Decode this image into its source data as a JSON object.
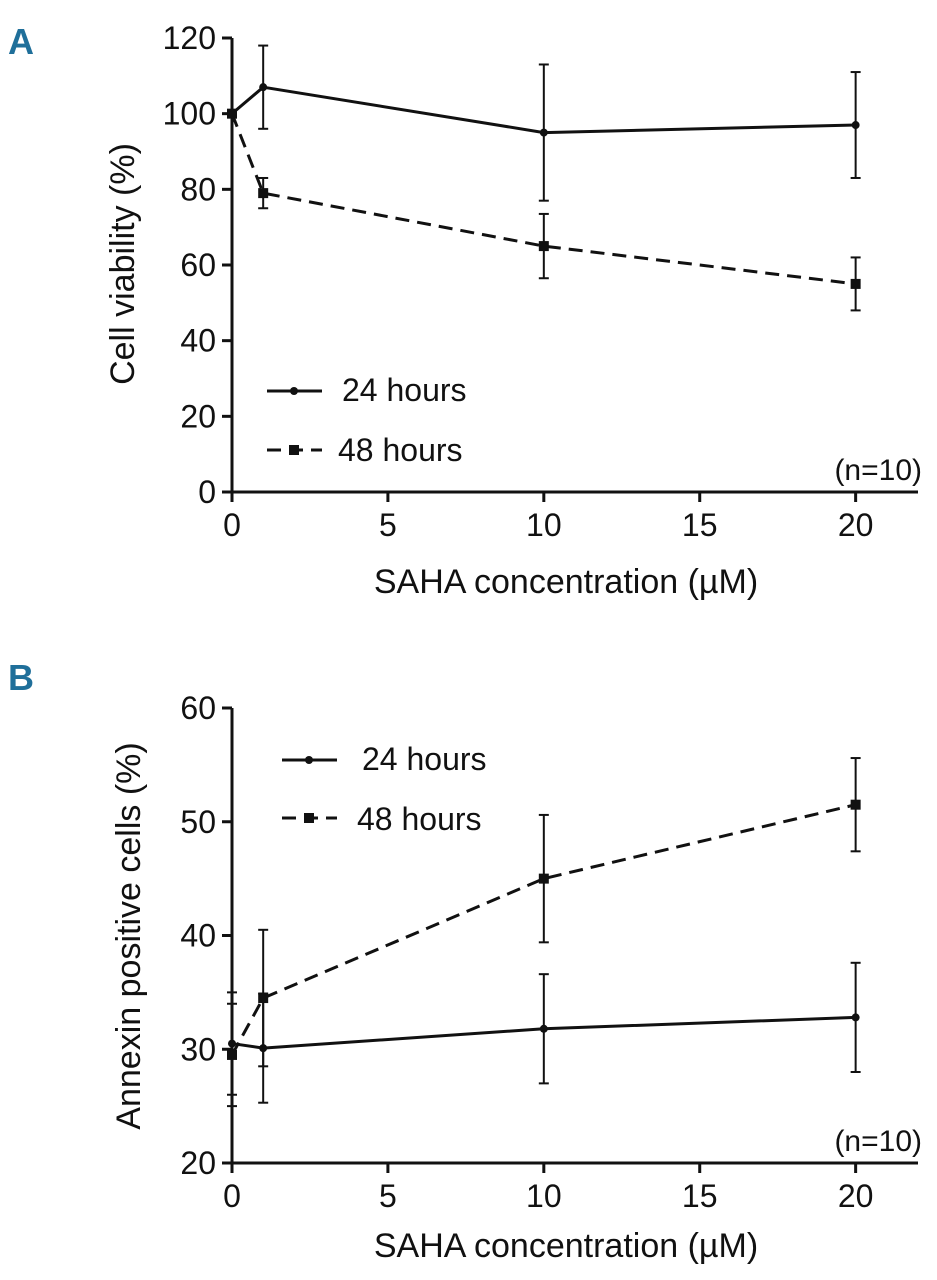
{
  "panels": [
    {
      "label": "A",
      "note": "(n=10)",
      "chart_data": {
        "type": "line",
        "title": "",
        "xlabel": "SAHA concentration (µM)",
        "ylabel": "Cell viability (%)",
        "xlim": [
          0,
          22
        ],
        "ylim": [
          0,
          120
        ],
        "xticks": [
          0,
          5,
          10,
          15,
          20
        ],
        "yticks": [
          0,
          20,
          40,
          60,
          80,
          100,
          120
        ],
        "grid": false,
        "legend_position": "lower-left",
        "series": [
          {
            "name": "24 hours",
            "line_style": "solid",
            "marker": "circle",
            "x": [
              0,
              1,
              10,
              20
            ],
            "y": [
              100,
              107,
              95,
              97
            ],
            "err": [
              0,
              11,
              18,
              14
            ]
          },
          {
            "name": "48 hours",
            "line_style": "dashed",
            "marker": "square",
            "x": [
              0,
              1,
              10,
              20
            ],
            "y": [
              100,
              79,
              65,
              55
            ],
            "err": [
              0,
              4,
              8.5,
              7
            ]
          }
        ]
      }
    },
    {
      "label": "B",
      "note": "(n=10)",
      "chart_data": {
        "type": "line",
        "title": "",
        "xlabel": "SAHA concentration (µM)",
        "ylabel": "Annexin positive cells (%)",
        "xlim": [
          0,
          22
        ],
        "ylim": [
          20,
          60
        ],
        "xticks": [
          0,
          5,
          10,
          15,
          20
        ],
        "yticks": [
          20,
          30,
          40,
          50,
          60
        ],
        "grid": false,
        "legend_position": "top-left",
        "series": [
          {
            "name": "24 hours",
            "line_style": "solid",
            "marker": "circle",
            "x": [
              0,
              1,
              10,
              20
            ],
            "y": [
              30.5,
              30.1,
              31.8,
              32.8
            ],
            "err": [
              4.5,
              4.8,
              4.8,
              4.8
            ]
          },
          {
            "name": "48 hours",
            "line_style": "dashed",
            "marker": "square",
            "x": [
              0,
              1,
              10,
              20
            ],
            "y": [
              29.5,
              34.5,
              45,
              51.5
            ],
            "err": [
              4.5,
              6,
              5.6,
              4.1
            ]
          }
        ]
      }
    }
  ]
}
